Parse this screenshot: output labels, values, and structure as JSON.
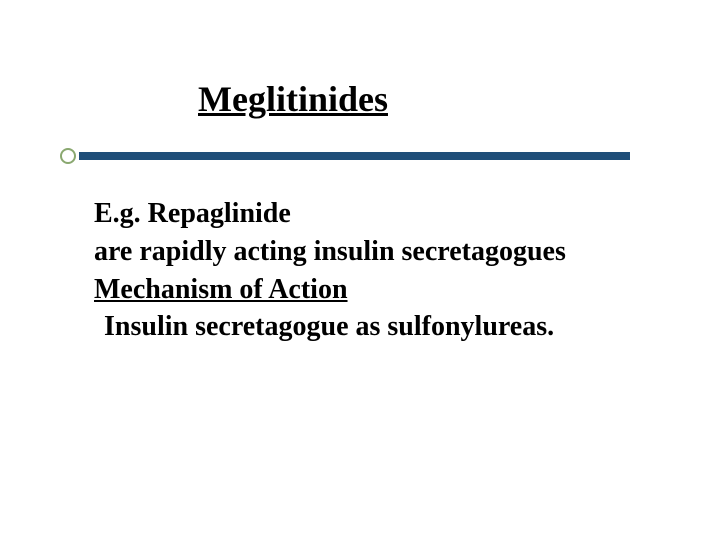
{
  "slide": {
    "title": "Meglitinides",
    "title_fontsize": 36,
    "body_fontsize": 28,
    "line_height": 1.28,
    "lines": [
      {
        "text": "E.g. Repaglinide",
        "underline": false,
        "indent": false
      },
      {
        "text": "are rapidly acting insulin secretagogues",
        "underline": false,
        "indent": false
      },
      {
        "text": " Mechanism of Action",
        "underline": true,
        "indent": false
      },
      {
        "text": "Insulin secretagogue as sulfonylureas.",
        "underline": false,
        "indent": true
      }
    ]
  },
  "style": {
    "background_color": "#ffffff",
    "text_color": "#000000",
    "accent_bar_color": "#1f4e79",
    "bullet_border_color": "#8aa870",
    "bullet_border_width": 2.5
  }
}
